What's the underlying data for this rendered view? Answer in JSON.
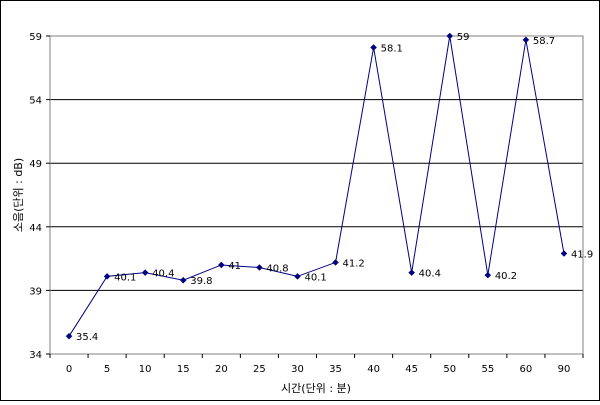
{
  "chart_data": {
    "type": "line",
    "title": "",
    "xlabel": "시간(단위 : 분)",
    "ylabel": "소음(단위 : dB)",
    "categories": [
      "0",
      "5",
      "10",
      "15",
      "20",
      "25",
      "30",
      "35",
      "40",
      "45",
      "50",
      "55",
      "60",
      "90"
    ],
    "series": [
      {
        "values": [
          35.4,
          40.1,
          40.4,
          39.8,
          41,
          40.8,
          40.1,
          41.2,
          58.1,
          40.4,
          59,
          40.2,
          58.7,
          41.9
        ],
        "labels": [
          "35.4",
          "40.1",
          "40.4",
          "39.8",
          "41",
          "40.8",
          "40.1",
          "41.2",
          "58.1",
          "40.4",
          "59",
          "40.2",
          "58.7",
          "41.9"
        ],
        "color": "#000080"
      }
    ],
    "ylim": [
      34,
      59
    ],
    "yticks": [
      34,
      39,
      44,
      49,
      54,
      59
    ],
    "grid": "horizontal",
    "legend": "none"
  }
}
